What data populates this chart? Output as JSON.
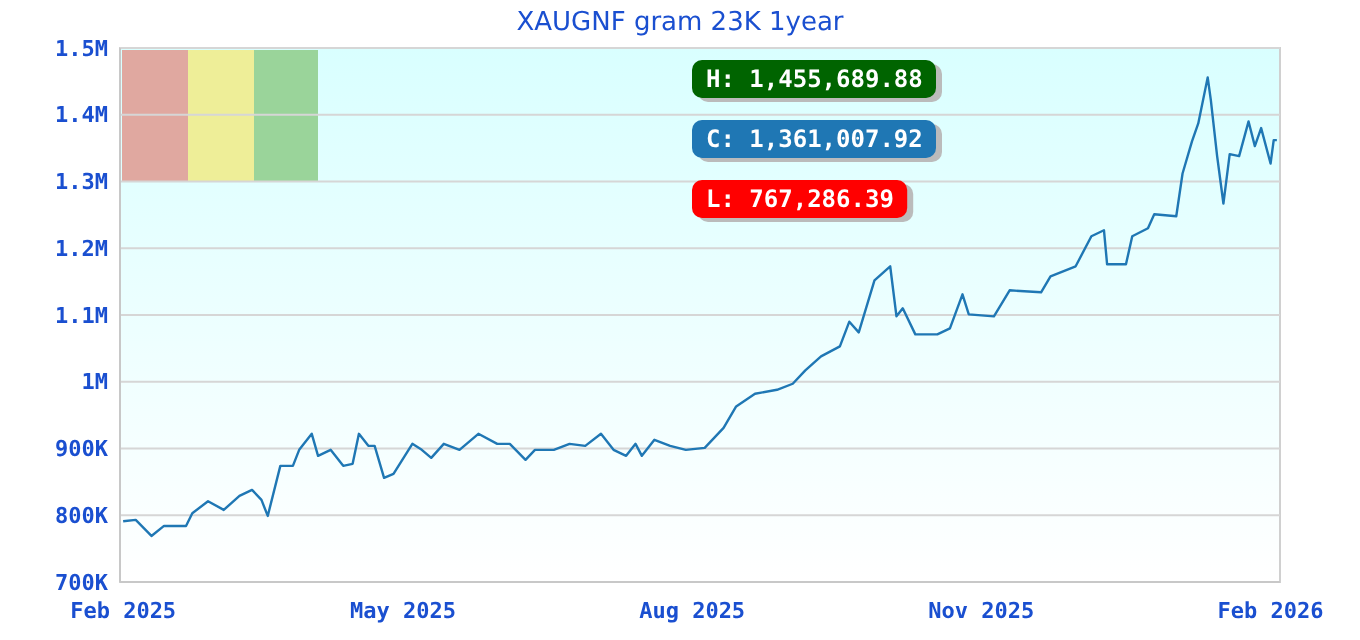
{
  "chart_data": {
    "type": "line",
    "title": "XAUGNF gram 23K 1year",
    "x": [
      "2025-02-01",
      "2025-02-05",
      "2025-02-10",
      "2025-02-14",
      "2025-02-21",
      "2025-02-23",
      "2025-02-28",
      "2025-03-05",
      "2025-03-10",
      "2025-03-14",
      "2025-03-17",
      "2025-03-19",
      "2025-03-23",
      "2025-03-27",
      "2025-03-29",
      "2025-04-02",
      "2025-04-04",
      "2025-04-08",
      "2025-04-12",
      "2025-04-15",
      "2025-04-17",
      "2025-04-20",
      "2025-04-22",
      "2025-04-25",
      "2025-04-28",
      "2025-05-04",
      "2025-05-07",
      "2025-05-10",
      "2025-05-14",
      "2025-05-19",
      "2025-05-25",
      "2025-05-31",
      "2025-06-04",
      "2025-06-09",
      "2025-06-12",
      "2025-06-18",
      "2025-06-23",
      "2025-06-28",
      "2025-07-03",
      "2025-07-07",
      "2025-07-11",
      "2025-07-14",
      "2025-07-16",
      "2025-07-20",
      "2025-07-25",
      "2025-07-30",
      "2025-08-05",
      "2025-08-11",
      "2025-08-15",
      "2025-08-21",
      "2025-08-28",
      "2025-09-02",
      "2025-09-06",
      "2025-09-11",
      "2025-09-17",
      "2025-09-20",
      "2025-09-23",
      "2025-09-28",
      "2025-10-03",
      "2025-10-05",
      "2025-10-07",
      "2025-10-11",
      "2025-10-18",
      "2025-10-22",
      "2025-10-26",
      "2025-10-28",
      "2025-11-05",
      "2025-11-10",
      "2025-11-20",
      "2025-11-23",
      "2025-12-01",
      "2025-12-06",
      "2025-12-10",
      "2025-12-11",
      "2025-12-17",
      "2025-12-19",
      "2025-12-24",
      "2025-12-26",
      "2026-01-02",
      "2026-01-04",
      "2026-01-07",
      "2026-01-09",
      "2026-01-12",
      "2026-01-13",
      "2026-01-15",
      "2026-01-17",
      "2026-01-19",
      "2026-01-22",
      "2026-01-25",
      "2026-01-27",
      "2026-01-29",
      "2026-02-01",
      "2026-02-02",
      "2026-02-03"
    ],
    "series": [
      {
        "color": "#1f77b4",
        "values": [
          791000,
          793000,
          769000,
          784000,
          784000,
          803000,
          821000,
          808000,
          829000,
          838000,
          823000,
          799000,
          874000,
          874000,
          898000,
          922000,
          889000,
          898000,
          874000,
          877000,
          922000,
          904000,
          904000,
          856000,
          862000,
          907000,
          898000,
          886000,
          907000,
          898000,
          922000,
          907000,
          907000,
          883000,
          898000,
          898000,
          907000,
          904000,
          922000,
          898000,
          889000,
          907000,
          889000,
          913000,
          904000,
          898000,
          901000,
          931000,
          963000,
          982000,
          988000,
          997000,
          1017000,
          1038000,
          1053000,
          1090000,
          1074000,
          1152000,
          1173000,
          1098000,
          1110000,
          1071000,
          1071000,
          1080000,
          1131000,
          1101000,
          1098000,
          1137000,
          1134000,
          1158000,
          1173000,
          1218000,
          1227000,
          1176000,
          1176000,
          1218000,
          1230000,
          1251000,
          1248000,
          1312000,
          1360000,
          1387000,
          1456000,
          1422000,
          1338000,
          1267000,
          1341000,
          1338000,
          1390000,
          1353000,
          1380000,
          1327000,
          1362000,
          1362000
        ]
      }
    ],
    "xlim": [
      "2025-01-31",
      "2026-02-04"
    ],
    "xticks": [
      {
        "value": "2025-02-01",
        "label": "Feb 2025"
      },
      {
        "value": "2025-05-01",
        "label": "May 2025"
      },
      {
        "value": "2025-08-01",
        "label": "Aug 2025"
      },
      {
        "value": "2025-11-01",
        "label": "Nov 2025"
      },
      {
        "value": "2026-02-01",
        "label": "Feb 2026"
      }
    ],
    "ylim": [
      700000,
      1500000
    ],
    "yticks": [
      {
        "value": 700000,
        "label": "700K"
      },
      {
        "value": 800000,
        "label": "800K"
      },
      {
        "value": 900000,
        "label": "900K"
      },
      {
        "value": 1000000,
        "label": "1M"
      },
      {
        "value": 1100000,
        "label": "1.1M"
      },
      {
        "value": 1200000,
        "label": "1.2M"
      },
      {
        "value": 1300000,
        "label": "1.3M"
      },
      {
        "value": 1400000,
        "label": "1.4M"
      },
      {
        "value": 1500000,
        "label": "1.5M"
      }
    ],
    "grid": "y",
    "marker": "none",
    "line_style": "solid",
    "annotations": [
      "H: 1,455,689.88",
      "C: 1,361,007.92",
      "L: 767,286.39"
    ]
  }
}
